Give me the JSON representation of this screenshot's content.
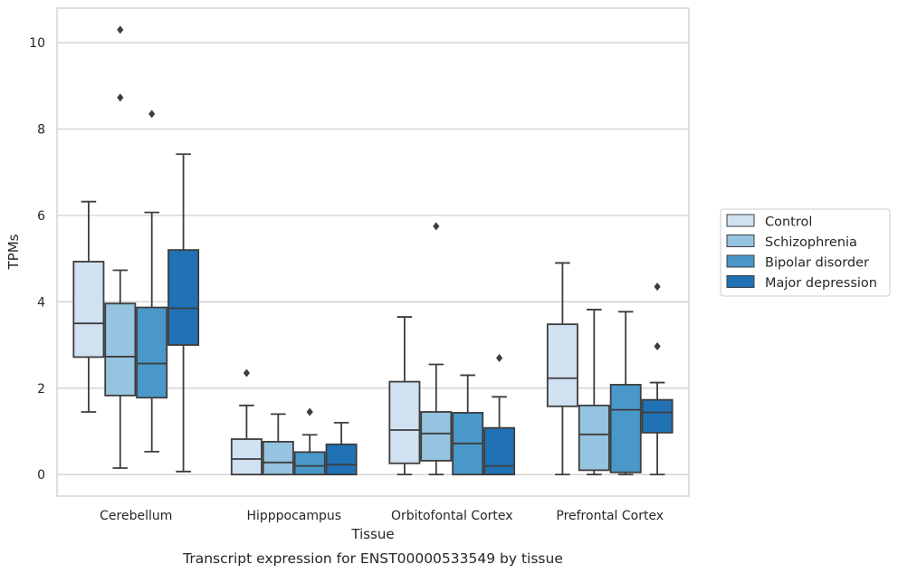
{
  "chart_data": {
    "type": "boxplot",
    "title": "",
    "caption": "Transcript expression for ENST00000533549 by tissue",
    "xlabel": "Tissue",
    "ylabel": "TPMs",
    "ylim": [
      -0.5,
      10.8
    ],
    "yticks": [
      0,
      2,
      4,
      6,
      8,
      10
    ],
    "grid": true,
    "legend_position": "right",
    "categories": [
      "Cerebellum",
      "Hipppocampus",
      "Orbitofontal Cortex",
      "Prefrontal Cortex"
    ],
    "series": [
      {
        "name": "Control",
        "color": "#d0e1f2",
        "boxes": [
          {
            "whislo": 1.45,
            "q1": 2.72,
            "med": 3.5,
            "q3": 4.93,
            "whishi": 6.32,
            "fliers": []
          },
          {
            "whislo": 0.0,
            "q1": 0.0,
            "med": 0.36,
            "q3": 0.82,
            "whishi": 1.6,
            "fliers": [
              2.35
            ]
          },
          {
            "whislo": 0.0,
            "q1": 0.26,
            "med": 1.03,
            "q3": 2.15,
            "whishi": 3.65,
            "fliers": []
          },
          {
            "whislo": 0.0,
            "q1": 1.58,
            "med": 2.23,
            "q3": 3.48,
            "whishi": 4.9,
            "fliers": []
          }
        ]
      },
      {
        "name": "Schizophrenia",
        "color": "#94c4df",
        "boxes": [
          {
            "whislo": 0.15,
            "q1": 1.83,
            "med": 2.73,
            "q3": 3.96,
            "whishi": 4.73,
            "fliers": [
              8.73,
              10.3
            ]
          },
          {
            "whislo": 0.0,
            "q1": 0.0,
            "med": 0.28,
            "q3": 0.76,
            "whishi": 1.4,
            "fliers": []
          },
          {
            "whislo": 0.0,
            "q1": 0.32,
            "med": 0.95,
            "q3": 1.45,
            "whishi": 2.55,
            "fliers": [
              5.75
            ]
          },
          {
            "whislo": 0.0,
            "q1": 0.1,
            "med": 0.93,
            "q3": 1.6,
            "whishi": 3.82,
            "fliers": []
          }
        ]
      },
      {
        "name": "Bipolar disorder",
        "color": "#4a98c9",
        "boxes": [
          {
            "whislo": 0.53,
            "q1": 1.78,
            "med": 2.57,
            "q3": 3.87,
            "whishi": 6.07,
            "fliers": [
              8.35
            ]
          },
          {
            "whislo": 0.0,
            "q1": 0.0,
            "med": 0.2,
            "q3": 0.52,
            "whishi": 0.92,
            "fliers": [
              1.45
            ]
          },
          {
            "whislo": 0.0,
            "q1": 0.0,
            "med": 0.72,
            "q3": 1.43,
            "whishi": 2.3,
            "fliers": []
          },
          {
            "whislo": 0.0,
            "q1": 0.05,
            "med": 1.5,
            "q3": 2.08,
            "whishi": 3.77,
            "fliers": []
          }
        ]
      },
      {
        "name": "Major depression",
        "color": "#2171b5",
        "boxes": [
          {
            "whislo": 0.07,
            "q1": 3.0,
            "med": 3.85,
            "q3": 5.2,
            "whishi": 7.42,
            "fliers": []
          },
          {
            "whislo": 0.0,
            "q1": 0.0,
            "med": 0.23,
            "q3": 0.7,
            "whishi": 1.2,
            "fliers": []
          },
          {
            "whislo": 0.0,
            "q1": 0.0,
            "med": 0.2,
            "q3": 1.08,
            "whishi": 1.8,
            "fliers": [
              2.7
            ]
          },
          {
            "whislo": 0.0,
            "q1": 0.97,
            "med": 1.44,
            "q3": 1.73,
            "whishi": 2.13,
            "fliers": [
              2.97,
              4.35
            ]
          }
        ]
      }
    ]
  }
}
